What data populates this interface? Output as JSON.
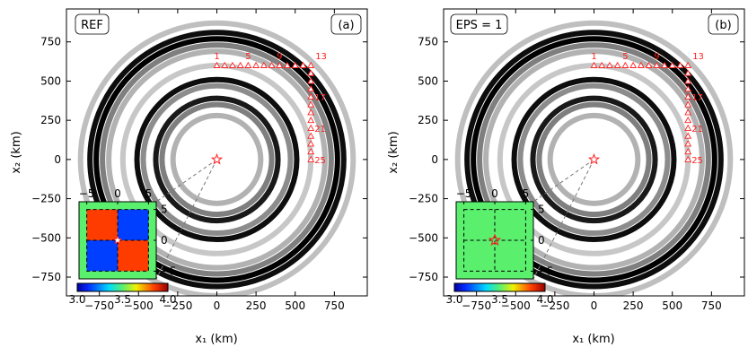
{
  "chart_data": [
    {
      "type": "scatter",
      "panel_label": "(a)",
      "tag": "REF",
      "xlabel": "x₁ (km)",
      "ylabel": "x₂ (km)",
      "xlim": [
        -960,
        960
      ],
      "ylim": [
        -870,
        960
      ],
      "xticks": [
        -750,
        -500,
        -250,
        0,
        250,
        500,
        750
      ],
      "yticks": [
        -750,
        -500,
        -250,
        0,
        250,
        500,
        750
      ],
      "source": {
        "x": 0,
        "y": 0
      },
      "receiver_labels": [
        {
          "label": "1",
          "x": 0,
          "y": 600
        },
        {
          "label": "5",
          "x": 200,
          "y": 600
        },
        {
          "label": "9",
          "x": 400,
          "y": 600
        },
        {
          "label": "13",
          "x": 600,
          "y": 600
        },
        {
          "label": "17",
          "x": 600,
          "y": 400
        },
        {
          "label": "21",
          "x": 600,
          "y": 200
        },
        {
          "label": "25",
          "x": 600,
          "y": 0
        }
      ],
      "wavefront_rings_km": [
        {
          "radius": 870,
          "strength": 0.25
        },
        {
          "radius": 810,
          "strength": 0.95
        },
        {
          "radius": 770,
          "strength": 1.0
        },
        {
          "radius": 730,
          "strength": 0.5
        },
        {
          "radius": 690,
          "strength": 0.3
        },
        {
          "radius": 600,
          "strength": 0.22
        },
        {
          "radius": 510,
          "strength": 0.95
        },
        {
          "radius": 470,
          "strength": 0.45
        },
        {
          "radius": 390,
          "strength": 0.9
        },
        {
          "radius": 350,
          "strength": 0.5
        },
        {
          "radius": 280,
          "strength": 0.3
        }
      ],
      "inset": {
        "xticks": [
          -5,
          0,
          5
        ],
        "yticks": [
          5,
          0,
          -5
        ],
        "colorbar_ticks": [
          "3.0",
          "3.5",
          "4.0"
        ],
        "color_range": [
          3.0,
          4.0
        ],
        "grid": [
          [
            3.85,
            3.15
          ],
          [
            3.15,
            3.85
          ]
        ],
        "source": {
          "x": 0,
          "y": 0
        }
      }
    },
    {
      "type": "scatter",
      "panel_label": "(b)",
      "tag": "EPS = 1",
      "xlabel": "x₁ (km)",
      "ylabel": "x₂ (km)",
      "xlim": [
        -960,
        960
      ],
      "ylim": [
        -870,
        960
      ],
      "xticks": [
        -750,
        -500,
        -250,
        0,
        250,
        500,
        750
      ],
      "yticks": [
        -750,
        -500,
        -250,
        0,
        250,
        500,
        750
      ],
      "source": {
        "x": 0,
        "y": 0
      },
      "receiver_labels": [
        {
          "label": "1",
          "x": 0,
          "y": 600
        },
        {
          "label": "5",
          "x": 200,
          "y": 600
        },
        {
          "label": "9",
          "x": 400,
          "y": 600
        },
        {
          "label": "13",
          "x": 600,
          "y": 600
        },
        {
          "label": "17",
          "x": 600,
          "y": 400
        },
        {
          "label": "21",
          "x": 600,
          "y": 200
        },
        {
          "label": "25",
          "x": 600,
          "y": 0
        }
      ],
      "wavefront_rings_km": [
        {
          "radius": 870,
          "strength": 0.25
        },
        {
          "radius": 810,
          "strength": 0.95
        },
        {
          "radius": 770,
          "strength": 1.0
        },
        {
          "radius": 730,
          "strength": 0.5
        },
        {
          "radius": 690,
          "strength": 0.3
        },
        {
          "radius": 600,
          "strength": 0.22
        },
        {
          "radius": 510,
          "strength": 0.95
        },
        {
          "radius": 470,
          "strength": 0.45
        },
        {
          "radius": 390,
          "strength": 0.9
        },
        {
          "radius": 350,
          "strength": 0.5
        },
        {
          "radius": 280,
          "strength": 0.3
        }
      ],
      "inset": {
        "xticks": [
          -5,
          0,
          5
        ],
        "yticks": [
          5,
          0,
          -5
        ],
        "colorbar_ticks": [
          "3.0",
          "3.5",
          "4.0"
        ],
        "color_range": [
          3.0,
          4.0
        ],
        "grid": [
          [
            3.5,
            3.5
          ],
          [
            3.5,
            3.5
          ]
        ],
        "source": {
          "x": 0,
          "y": 0
        }
      }
    }
  ],
  "colors": {
    "receiver": "#ff2020",
    "source": "#ff2020",
    "ring": "#000000",
    "guide_line": "#777777"
  },
  "receivers": {
    "top_row_count": 13,
    "right_column_count": 13,
    "spacing_km": 50
  }
}
